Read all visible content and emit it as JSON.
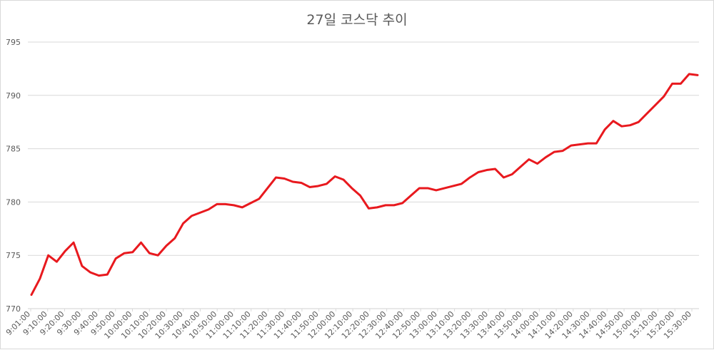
{
  "chart_data": {
    "type": "line",
    "title": "27일 코스닥 추이",
    "xlabel": "",
    "ylabel": "",
    "ylim": [
      770,
      795
    ],
    "y_ticks": [
      770,
      775,
      780,
      785,
      790,
      795
    ],
    "grid": true,
    "legend": "none",
    "colors": {
      "line": "#e8191e",
      "grid": "#d9d9d9",
      "text": "#595959"
    },
    "x_tick_labels": [
      "9:01:00",
      "9:10:00",
      "9:20:00",
      "9:30:00",
      "9:40:00",
      "9:50:00",
      "10:00:00",
      "10:10:00",
      "10:20:00",
      "10:30:00",
      "10:40:00",
      "10:50:00",
      "11:00:00",
      "11:10:00",
      "11:20:00",
      "11:30:00",
      "11:40:00",
      "11:50:00",
      "12:00:00",
      "12:10:00",
      "12:20:00",
      "12:30:00",
      "12:40:00",
      "12:50:00",
      "13:00:00",
      "13:10:00",
      "13:20:00",
      "13:30:00",
      "13:40:00",
      "13:50:00",
      "14:00:00",
      "14:10:00",
      "14:20:00",
      "14:30:00",
      "14:40:00",
      "14:50:00",
      "15:00:00",
      "15:10:00",
      "15:20:00",
      "15:30:00"
    ],
    "series": [
      {
        "values": [
          771.3,
          772.8,
          775.0,
          774.4,
          775.4,
          776.2,
          774.0,
          773.4,
          773.1,
          773.2,
          774.7,
          775.2,
          775.3,
          776.2,
          775.2,
          775.0,
          775.9,
          776.6,
          778.0,
          778.7,
          779.0,
          779.3,
          779.8,
          779.8,
          779.7,
          779.5,
          779.9,
          780.3,
          781.3,
          782.3,
          782.2,
          781.9,
          781.8,
          781.4,
          781.5,
          781.7,
          782.4,
          782.1,
          781.3,
          780.6,
          779.4,
          779.5,
          779.7,
          779.7,
          779.9,
          780.6,
          781.3,
          781.3,
          781.1,
          781.3,
          781.5,
          781.7,
          782.3,
          782.8,
          783.0,
          783.1,
          782.3,
          782.6,
          783.3,
          784.0,
          783.6,
          784.2,
          784.7,
          784.8,
          785.3,
          785.4,
          785.5,
          785.5,
          786.8,
          787.6,
          787.1,
          787.2,
          787.5,
          788.3,
          789.1,
          789.9,
          791.1,
          791.1,
          792.0,
          791.9
        ]
      }
    ]
  }
}
